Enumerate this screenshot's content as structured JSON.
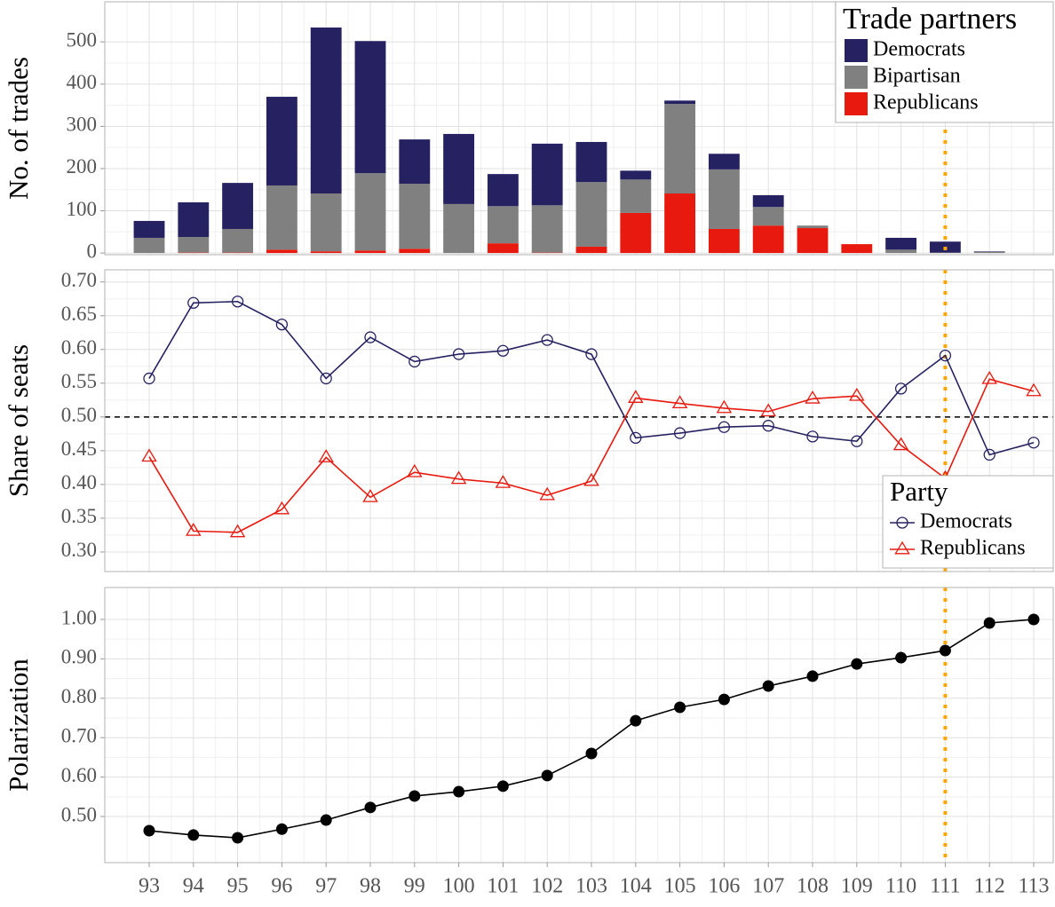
{
  "chart_data": [
    {
      "type": "bar",
      "stacked": true,
      "ylabel": "No. of trades",
      "ylim": [
        -4,
        595
      ],
      "yticks": [
        0,
        100,
        200,
        300,
        400,
        500
      ],
      "grid": true,
      "legend_title": "Trade partners",
      "legend_position": "top-right",
      "vline": {
        "category": "111",
        "color": "#ffa500"
      },
      "series": [
        {
          "name": "Democrats",
          "color": "#262262",
          "values": [
            40,
            82,
            109,
            210,
            393,
            313,
            105,
            166,
            76,
            146,
            95,
            21,
            8,
            37,
            28,
            0,
            0,
            28,
            26,
            1,
            0
          ]
        },
        {
          "name": "Bipartisan",
          "color": "#808080",
          "values": [
            36,
            37,
            56,
            152,
            137,
            183,
            154,
            116,
            88,
            112,
            153,
            79,
            212,
            141,
            44,
            6,
            0,
            8,
            1,
            3,
            0
          ]
        },
        {
          "name": "Republicans",
          "color": "#e8190e",
          "values": [
            0,
            1,
            1,
            8,
            4,
            6,
            10,
            0,
            23,
            1,
            15,
            95,
            141,
            57,
            65,
            59,
            21,
            0,
            0,
            0,
            0
          ]
        }
      ]
    },
    {
      "type": "line",
      "ylabel": "Share of seats",
      "ylim": [
        0.271,
        0.718
      ],
      "yticks": [
        {
          "value": 0.3,
          "label": "0.30"
        },
        {
          "value": 0.35,
          "label": "0.35"
        },
        {
          "value": 0.4,
          "label": "0.40"
        },
        {
          "value": 0.45,
          "label": "0.45"
        },
        {
          "value": 0.5,
          "label": "0.50"
        },
        {
          "value": 0.55,
          "label": "0.55"
        },
        {
          "value": 0.6,
          "label": "0.60"
        },
        {
          "value": 0.65,
          "label": "0.65"
        },
        {
          "value": 0.7,
          "label": "0.70"
        }
      ],
      "grid": true,
      "hline": {
        "y": 0.5,
        "color": "#000000"
      },
      "legend_title": "Party",
      "legend_position": "bottom-right",
      "vline": {
        "category": "111",
        "color": "#ffa500"
      },
      "series": [
        {
          "name": "Democrats",
          "color": "#262262",
          "marker": "open-circle",
          "values": [
            0.557,
            0.669,
            0.671,
            0.637,
            0.557,
            0.618,
            0.582,
            0.593,
            0.598,
            0.614,
            0.593,
            0.469,
            0.476,
            0.485,
            0.487,
            0.471,
            0.464,
            0.542,
            0.591,
            0.444,
            0.462
          ]
        },
        {
          "name": "Republicans",
          "color": "#e8190e",
          "marker": "open-triangle",
          "values": [
            0.441,
            0.331,
            0.329,
            0.363,
            0.44,
            0.381,
            0.418,
            0.408,
            0.402,
            0.384,
            0.405,
            0.528,
            0.52,
            0.513,
            0.508,
            0.527,
            0.531,
            0.458,
            0.409,
            0.556,
            0.538
          ]
        }
      ]
    },
    {
      "type": "line",
      "ylabel": "Polarization",
      "categories": [
        "93",
        "94",
        "95",
        "96",
        "97",
        "98",
        "99",
        "100",
        "101",
        "102",
        "103",
        "104",
        "105",
        "106",
        "107",
        "108",
        "109",
        "110",
        "111",
        "112",
        "113"
      ],
      "ylim": [
        0.383,
        1.081
      ],
      "yticks": [
        {
          "value": 0.5,
          "label": "0.50"
        },
        {
          "value": 0.6,
          "label": "0.60"
        },
        {
          "value": 0.7,
          "label": "0.70"
        },
        {
          "value": 0.8,
          "label": "0.80"
        },
        {
          "value": 0.9,
          "label": "0.90"
        },
        {
          "value": 1.0,
          "label": "1.00"
        }
      ],
      "grid": true,
      "vline": {
        "category": "111",
        "color": "#ffa500"
      },
      "series": [
        {
          "color": "#000000",
          "marker": "filled-circle",
          "values": [
            0.464,
            0.453,
            0.446,
            0.468,
            0.491,
            0.523,
            0.552,
            0.563,
            0.577,
            0.604,
            0.66,
            0.743,
            0.777,
            0.797,
            0.831,
            0.856,
            0.887,
            0.903,
            0.921,
            0.991,
            1.0
          ]
        }
      ]
    }
  ]
}
